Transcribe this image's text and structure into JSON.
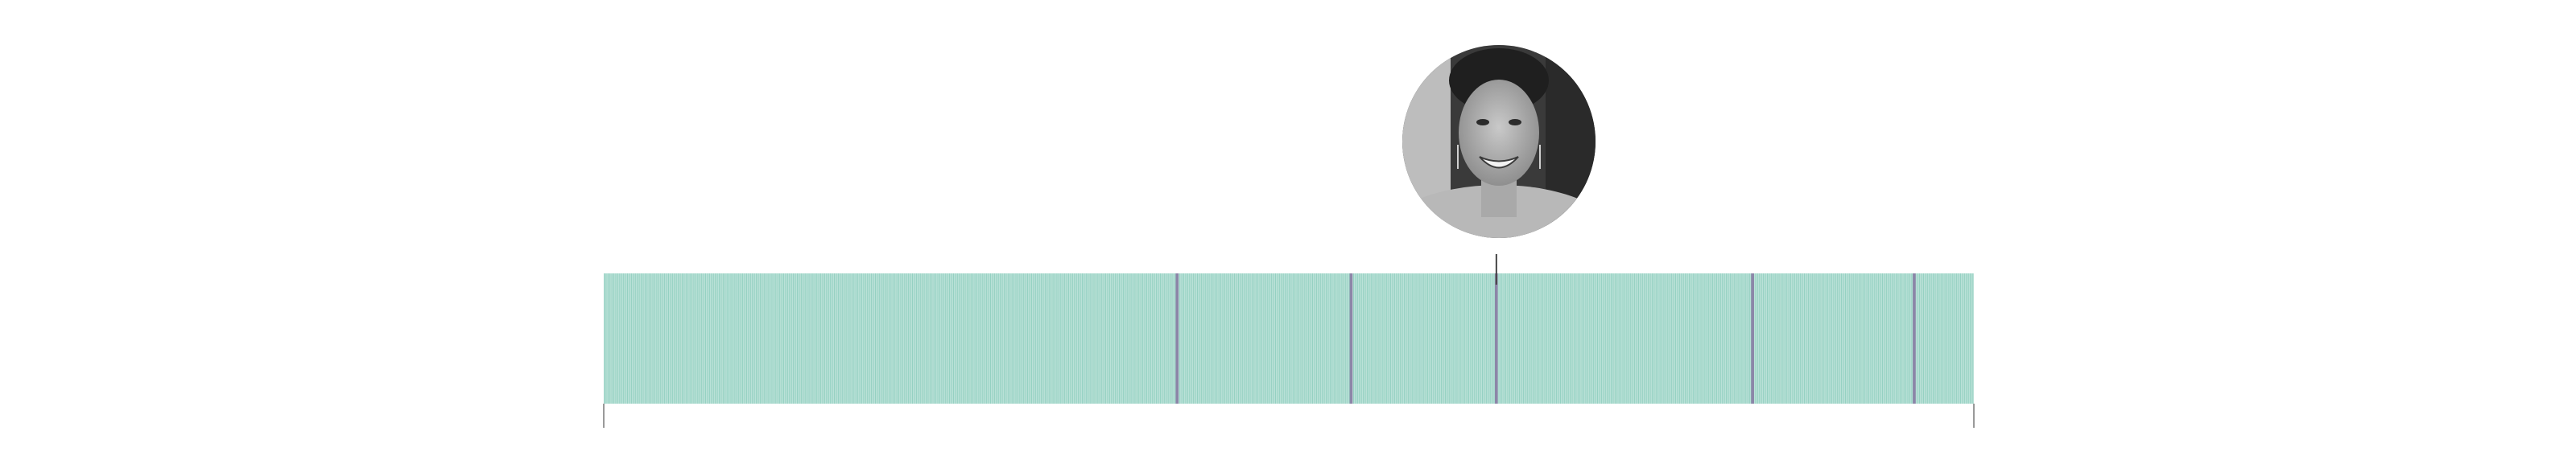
{
  "chart_data": {
    "type": "bar",
    "total_count": 1000,
    "fill_color": "#95d1c2",
    "stripe_color": "#ffffff",
    "highlight_color": "#8c86a8",
    "highlighted_units": [
      418,
      545,
      651,
      838,
      956
    ],
    "pointer_unit": 651,
    "portrait": {
      "tone": "grayscale",
      "attached_to_unit": 651
    }
  }
}
